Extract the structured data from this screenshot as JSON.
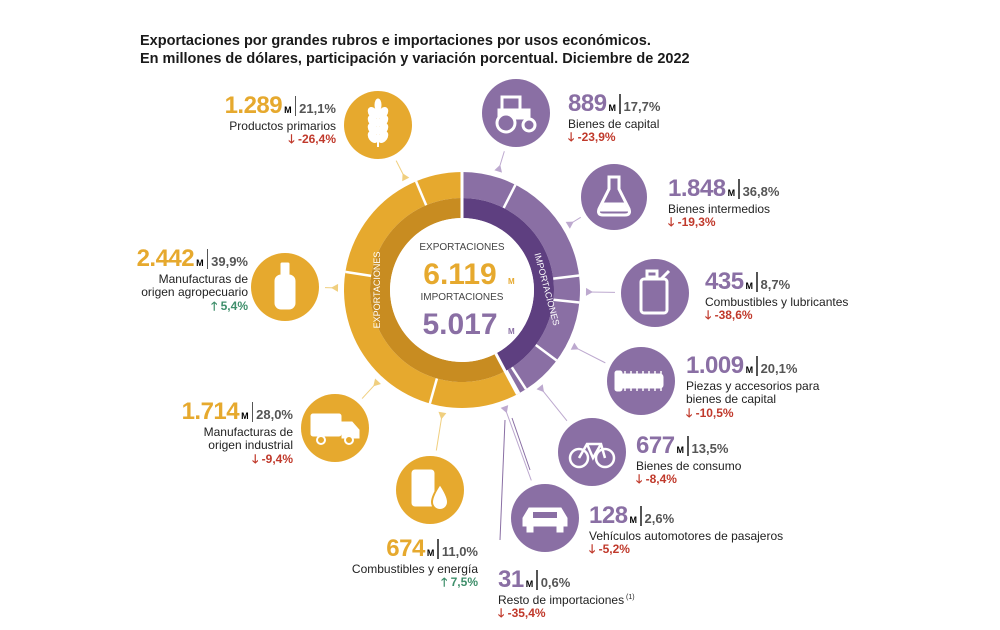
{
  "title_line1": "Exportaciones por grandes rubros e importaciones por usos económicos.",
  "title_line2": "En millones de dólares, participación y variación porcentual. Diciembre de 2022",
  "center": {
    "exp_label": "EXPORTACIONES",
    "exp_value": "6.119",
    "imp_label": "IMPORTACIONES",
    "imp_value": "5.017",
    "unit": "M",
    "ring_exp": "EXPORTACIONES",
    "ring_imp": "IMPORTACIONES"
  },
  "colors": {
    "exports": "#e6a92e",
    "exports_dark": "#c88c21",
    "imports": "#8a6fa4",
    "imports_dark": "#5e3f80",
    "up": "#3f8f6b",
    "down": "#c0392b"
  },
  "chart_data": {
    "type": "pie",
    "title": "Exportaciones por grandes rubros e importaciones por usos económicos",
    "totals": {
      "exportaciones": 6119,
      "importaciones": 5017
    },
    "series": [
      {
        "name": "Exportaciones",
        "categories": [
          "Productos primarios",
          "Manufacturas de origen agropecuario",
          "Manufacturas de origen industrial",
          "Combustibles y energía"
        ],
        "values": [
          1289,
          2442,
          1714,
          674
        ],
        "share_pct": [
          21.1,
          39.9,
          28.0,
          11.0
        ],
        "change_pct": [
          -26.4,
          5.4,
          -9.4,
          7.5
        ]
      },
      {
        "name": "Importaciones",
        "categories": [
          "Bienes de capital",
          "Bienes intermedios",
          "Combustibles y lubricantes",
          "Piezas y accesorios para bienes de capital",
          "Bienes de consumo",
          "Vehículos automotores de pasajeros",
          "Resto de importaciones"
        ],
        "values": [
          889,
          1848,
          435,
          1009,
          677,
          128,
          31
        ],
        "share_pct": [
          17.7,
          36.8,
          8.7,
          20.1,
          13.5,
          2.6,
          0.6
        ],
        "change_pct": [
          -23.9,
          -19.3,
          -38.6,
          -10.5,
          -8.4,
          -5.2,
          -35.4
        ]
      }
    ]
  },
  "exports": [
    {
      "value": "1.289",
      "unit": "M",
      "pct": "21,1%",
      "label": "Productos primarios",
      "label2": "",
      "change": "-26,4%",
      "dir": "down",
      "icon": "wheat-icon"
    },
    {
      "value": "2.442",
      "unit": "M",
      "pct": "39,9%",
      "label": "Manufacturas de",
      "label2": "origen agropecuario",
      "change": "5,4%",
      "dir": "up",
      "icon": "bottle-icon"
    },
    {
      "value": "1.714",
      "unit": "M",
      "pct": "28,0%",
      "label": "Manufacturas de",
      "label2": "origen industrial",
      "change": "-9,4%",
      "dir": "down",
      "icon": "truck-icon"
    },
    {
      "value": "674",
      "unit": "M",
      "pct": "11,0%",
      "label": "Combustibles y energía",
      "label2": "",
      "change": "7,5%",
      "dir": "up",
      "icon": "oil-drop-icon"
    }
  ],
  "imports": [
    {
      "value": "889",
      "unit": "M",
      "pct": "17,7%",
      "label": "Bienes de capital",
      "label2": "",
      "change": "-23,9%",
      "dir": "down",
      "icon": "tractor-icon"
    },
    {
      "value": "1.848",
      "unit": "M",
      "pct": "36,8%",
      "label": "Bienes intermedios",
      "label2": "",
      "change": "-19,3%",
      "dir": "down",
      "icon": "flask-icon"
    },
    {
      "value": "435",
      "unit": "M",
      "pct": "8,7%",
      "label": "Combustibles y lubricantes",
      "label2": "",
      "change": "-38,6%",
      "dir": "down",
      "icon": "jerrycan-icon"
    },
    {
      "value": "1.009",
      "unit": "M",
      "pct": "20,1%",
      "label": "Piezas y accesorios para",
      "label2": "bienes de capital",
      "change": "-10,5%",
      "dir": "down",
      "icon": "bolt-icon"
    },
    {
      "value": "677",
      "unit": "M",
      "pct": "13,5%",
      "label": "Bienes de consumo",
      "label2": "",
      "change": "-8,4%",
      "dir": "down",
      "icon": "bicycle-icon"
    },
    {
      "value": "128",
      "unit": "M",
      "pct": "2,6%",
      "label": "Vehículos automotores de pasajeros",
      "label2": "",
      "change": "-5,2%",
      "dir": "down",
      "icon": "car-icon"
    },
    {
      "value": "31",
      "unit": "M",
      "pct": "0,6%",
      "label": "Resto de importaciones",
      "label2": "",
      "note": "(1)",
      "change": "-35,4%",
      "dir": "down",
      "icon": ""
    }
  ],
  "arrows": {
    "up": "🡑",
    "down": "🡓"
  }
}
